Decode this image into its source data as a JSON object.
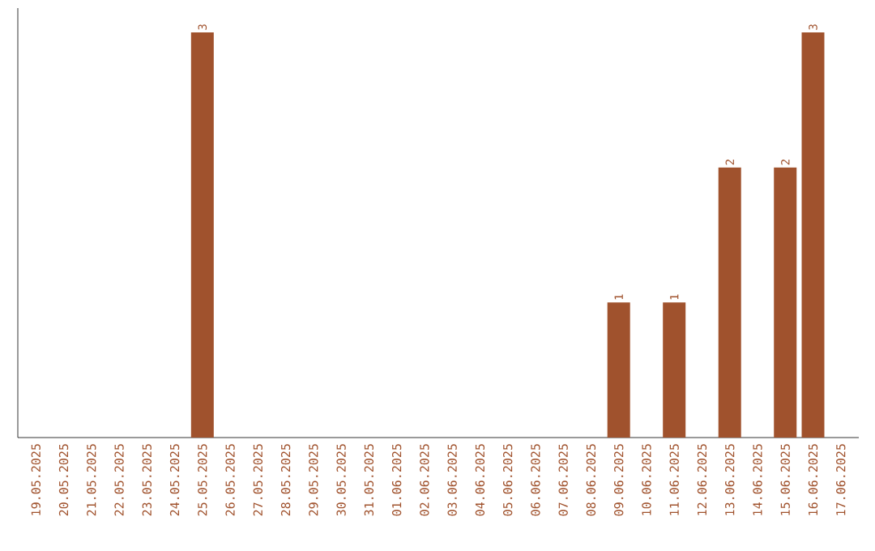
{
  "chart_data": {
    "type": "bar",
    "categories": [
      "19.05.2025",
      "20.05.2025",
      "21.05.2025",
      "22.05.2025",
      "23.05.2025",
      "24.05.2025",
      "25.05.2025",
      "26.05.2025",
      "27.05.2025",
      "28.05.2025",
      "29.05.2025",
      "30.05.2025",
      "31.05.2025",
      "01.06.2025",
      "02.06.2025",
      "03.06.2025",
      "04.06.2025",
      "05.06.2025",
      "06.06.2025",
      "07.06.2025",
      "08.06.2025",
      "09.06.2025",
      "10.06.2025",
      "11.06.2025",
      "12.06.2025",
      "13.06.2025",
      "14.06.2025",
      "15.06.2025",
      "16.06.2025",
      "17.06.2025"
    ],
    "values": [
      0,
      0,
      0,
      0,
      0,
      0,
      3,
      0,
      0,
      0,
      0,
      0,
      0,
      0,
      0,
      0,
      0,
      0,
      0,
      0,
      0,
      1,
      0,
      1,
      0,
      2,
      0,
      2,
      3,
      0
    ],
    "value_labels": [
      null,
      null,
      null,
      null,
      null,
      null,
      "3",
      null,
      null,
      null,
      null,
      null,
      null,
      null,
      null,
      null,
      null,
      null,
      null,
      null,
      null,
      "1",
      null,
      "1",
      null,
      "2",
      null,
      "2",
      "3",
      null
    ],
    "color": "#a0522d"
  }
}
